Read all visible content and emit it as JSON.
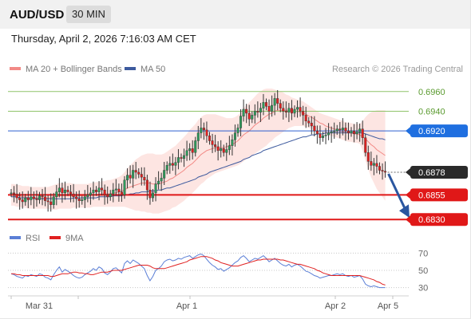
{
  "header": {
    "symbol": "AUD/USD",
    "timeframe": "30 MIN"
  },
  "datetime": "Thursday, April 2, 2026 7:16:03 AM CET",
  "legend": {
    "bollinger": "MA 20 + Bollinger Bands",
    "ma50": "MA 50"
  },
  "credit": "Research © 2026 Trading Central",
  "rsi_legend": {
    "rsi": "RSI",
    "ma": "9MA"
  },
  "colors": {
    "up": "#2e9a5b",
    "down": "#e02020",
    "ma20": "#f28a86",
    "band": "#fde2df",
    "ma50": "#3d5a9e",
    "green_level": "#8fc46a",
    "resistance_line": "#2d5fcf",
    "support_line": "#e01818",
    "arrow": "#2a56a0",
    "rsi_line": "#5b7fd6",
    "rsi_ma": "#e02020"
  },
  "chart_data": [
    {
      "type": "candlestick",
      "title": "AUD/USD",
      "ylim": [
        0.6818,
        0.6972
      ],
      "x_ticks": [
        "Mar 31",
        "Apr 1",
        "Apr 2",
        "Apr 5"
      ],
      "levels": [
        {
          "value": 0.696,
          "label": "0.6960",
          "kind": "green"
        },
        {
          "value": 0.694,
          "label": "0.6940",
          "kind": "green"
        },
        {
          "value": 0.692,
          "label": "0.6920",
          "kind": "resistance"
        },
        {
          "value": 0.6878,
          "label": "0.6878",
          "kind": "last"
        },
        {
          "value": 0.6855,
          "label": "0.6855",
          "kind": "support"
        },
        {
          "value": 0.683,
          "label": "0.6830",
          "kind": "support"
        }
      ],
      "last_price": 0.6878,
      "forecast": {
        "from": 0.6878,
        "to": 0.683,
        "direction": "down"
      },
      "close": [
        0.6857,
        0.6856,
        0.6852,
        0.685,
        0.6848,
        0.6852,
        0.685,
        0.6853,
        0.6851,
        0.685,
        0.6854,
        0.6853,
        0.6849,
        0.6848,
        0.6845,
        0.6853,
        0.6858,
        0.6862,
        0.6857,
        0.686,
        0.6858,
        0.6856,
        0.6853,
        0.6851,
        0.6849,
        0.685,
        0.6853,
        0.6855,
        0.6857,
        0.686,
        0.6858,
        0.6862,
        0.686,
        0.6855,
        0.6853,
        0.6856,
        0.686,
        0.6861,
        0.6858,
        0.6855,
        0.687,
        0.6875,
        0.6872,
        0.688,
        0.6878,
        0.6876,
        0.6873,
        0.687,
        0.686,
        0.6852,
        0.6857,
        0.6866,
        0.6869,
        0.6872,
        0.688,
        0.6885,
        0.6887,
        0.6885,
        0.6888,
        0.6893,
        0.6892,
        0.6895,
        0.69,
        0.6902,
        0.6898,
        0.691,
        0.6918,
        0.6923,
        0.6921,
        0.6915,
        0.691,
        0.6906,
        0.6904,
        0.69,
        0.6902,
        0.6898,
        0.6901,
        0.6905,
        0.6911,
        0.6918,
        0.6923,
        0.6935,
        0.6942,
        0.6938,
        0.6932,
        0.6936,
        0.694,
        0.6939,
        0.6943,
        0.6949,
        0.6945,
        0.694,
        0.6946,
        0.6953,
        0.6948,
        0.6943,
        0.694,
        0.6939,
        0.6943,
        0.6938,
        0.6942,
        0.6944,
        0.694,
        0.6936,
        0.693,
        0.6928,
        0.6925,
        0.692,
        0.6917,
        0.6913,
        0.6915,
        0.6916,
        0.6918,
        0.6919,
        0.692,
        0.6922,
        0.6921,
        0.6923,
        0.692,
        0.6918,
        0.692,
        0.6917,
        0.6919,
        0.6922,
        0.6913,
        0.6898,
        0.6889,
        0.6885,
        0.6887,
        0.6884,
        0.688,
        0.6879,
        0.6878
      ],
      "band_upper": [
        0.6866,
        0.6866,
        0.6865,
        0.6865,
        0.6864,
        0.6864,
        0.6864,
        0.6863,
        0.6863,
        0.6863,
        0.6863,
        0.6863,
        0.6863,
        0.6863,
        0.6864,
        0.6865,
        0.6866,
        0.6867,
        0.6867,
        0.6867,
        0.6867,
        0.6867,
        0.6866,
        0.6866,
        0.6866,
        0.6866,
        0.6866,
        0.6866,
        0.6867,
        0.6867,
        0.6868,
        0.6868,
        0.6869,
        0.6869,
        0.687,
        0.687,
        0.6871,
        0.6872,
        0.6873,
        0.6875,
        0.6878,
        0.6882,
        0.6885,
        0.6888,
        0.6891,
        0.6893,
        0.6895,
        0.6896,
        0.6897,
        0.6897,
        0.6897,
        0.6896,
        0.6896,
        0.6896,
        0.6897,
        0.6899,
        0.6901,
        0.6903,
        0.6905,
        0.6908,
        0.6911,
        0.6914,
        0.6917,
        0.6921,
        0.6924,
        0.6927,
        0.6931,
        0.6934,
        0.6936,
        0.6937,
        0.6937,
        0.6937,
        0.6937,
        0.6936,
        0.6935,
        0.6934,
        0.6933,
        0.6933,
        0.6933,
        0.6934,
        0.6936,
        0.6939,
        0.6943,
        0.6946,
        0.6949,
        0.6952,
        0.6955,
        0.6958,
        0.696,
        0.6962,
        0.6963,
        0.6963,
        0.6963,
        0.6962,
        0.6961,
        0.696,
        0.6959,
        0.6957,
        0.6956,
        0.6954,
        0.6953,
        0.6952,
        0.6951,
        0.695,
        0.6948,
        0.6946,
        0.6944,
        0.6942,
        0.694,
        0.6938,
        0.6937,
        0.6936,
        0.6935,
        0.6934,
        0.6933,
        0.6932,
        0.6931,
        0.693,
        0.6929,
        0.6928,
        0.6928,
        0.6927,
        0.6927,
        0.6927,
        0.693,
        0.6934,
        0.6937,
        0.6939,
        0.694,
        0.6941,
        0.6941,
        0.6941,
        0.6941
      ],
      "ma20": [
        0.6855,
        0.6855,
        0.6854,
        0.6854,
        0.6853,
        0.6853,
        0.6852,
        0.6852,
        0.6852,
        0.6852,
        0.6852,
        0.6852,
        0.6852,
        0.6852,
        0.6852,
        0.6853,
        0.6853,
        0.6854,
        0.6854,
        0.6854,
        0.6854,
        0.6854,
        0.6854,
        0.6854,
        0.6854,
        0.6854,
        0.6854,
        0.6854,
        0.6855,
        0.6855,
        0.6855,
        0.6856,
        0.6856,
        0.6856,
        0.6856,
        0.6856,
        0.6857,
        0.6857,
        0.6858,
        0.6859,
        0.686,
        0.6862,
        0.6863,
        0.6864,
        0.6865,
        0.6866,
        0.6867,
        0.6867,
        0.6867,
        0.6867,
        0.6866,
        0.6866,
        0.6866,
        0.6867,
        0.6868,
        0.6869,
        0.6871,
        0.6872,
        0.6874,
        0.6876,
        0.6878,
        0.688,
        0.6883,
        0.6885,
        0.6887,
        0.689,
        0.6893,
        0.6896,
        0.6898,
        0.69,
        0.6901,
        0.6902,
        0.6903,
        0.6903,
        0.6903,
        0.6903,
        0.6904,
        0.6905,
        0.6906,
        0.6908,
        0.691,
        0.6913,
        0.6916,
        0.6918,
        0.692,
        0.6923,
        0.6926,
        0.6928,
        0.693,
        0.6933,
        0.6935,
        0.6937,
        0.6938,
        0.694,
        0.6941,
        0.6941,
        0.6941,
        0.6941,
        0.6941,
        0.6941,
        0.694,
        0.694,
        0.6939,
        0.6938,
        0.6937,
        0.6935,
        0.6934,
        0.6932,
        0.693,
        0.6928,
        0.6927,
        0.6925,
        0.6924,
        0.6923,
        0.6922,
        0.6921,
        0.692,
        0.6919,
        0.6919,
        0.6918,
        0.6918,
        0.6917,
        0.6917,
        0.6916,
        0.6914,
        0.6912,
        0.6909,
        0.6906,
        0.6904,
        0.6901,
        0.6899,
        0.6897,
        0.6895
      ],
      "band_lower": [
        0.6844,
        0.6844,
        0.6843,
        0.6843,
        0.6842,
        0.6842,
        0.6841,
        0.6841,
        0.6841,
        0.6841,
        0.6841,
        0.6841,
        0.6841,
        0.6841,
        0.684,
        0.684,
        0.684,
        0.6841,
        0.6841,
        0.6841,
        0.6841,
        0.6841,
        0.6842,
        0.6842,
        0.6842,
        0.6842,
        0.6842,
        0.6842,
        0.6842,
        0.6843,
        0.6843,
        0.6843,
        0.6843,
        0.6843,
        0.6843,
        0.6843,
        0.6843,
        0.6843,
        0.6843,
        0.6843,
        0.6843,
        0.6842,
        0.6841,
        0.684,
        0.6839,
        0.6839,
        0.6838,
        0.6838,
        0.6837,
        0.6837,
        0.6836,
        0.6836,
        0.6836,
        0.6837,
        0.6838,
        0.6839,
        0.684,
        0.6842,
        0.6843,
        0.6845,
        0.6847,
        0.6849,
        0.6852,
        0.6854,
        0.6857,
        0.686,
        0.6863,
        0.6866,
        0.6868,
        0.6871,
        0.6873,
        0.6875,
        0.6877,
        0.6878,
        0.6879,
        0.688,
        0.6881,
        0.6882,
        0.6883,
        0.6884,
        0.6885,
        0.6887,
        0.6889,
        0.6891,
        0.6893,
        0.6895,
        0.6897,
        0.6899,
        0.6901,
        0.6903,
        0.6905,
        0.6908,
        0.691,
        0.6913,
        0.6915,
        0.6917,
        0.6919,
        0.6921,
        0.6923,
        0.6924,
        0.6925,
        0.6925,
        0.6925,
        0.6925,
        0.6924,
        0.6923,
        0.6922,
        0.6921,
        0.692,
        0.6919,
        0.6918,
        0.6917,
        0.6916,
        0.6915,
        0.6914,
        0.6913,
        0.6912,
        0.6911,
        0.691,
        0.6909,
        0.6909,
        0.6908,
        0.6908,
        0.6907,
        0.69,
        0.689,
        0.6881,
        0.6873,
        0.6867,
        0.6861,
        0.6857,
        0.6853,
        0.6849
      ],
      "ma50": [
        0.6853,
        0.6853,
        0.6853,
        0.6852,
        0.6852,
        0.6852,
        0.6852,
        0.6852,
        0.6852,
        0.6851,
        0.6851,
        0.6851,
        0.6851,
        0.6851,
        0.6851,
        0.6851,
        0.6851,
        0.6851,
        0.6851,
        0.6851,
        0.6851,
        0.6851,
        0.6852,
        0.6852,
        0.6852,
        0.6852,
        0.6852,
        0.6852,
        0.6852,
        0.6852,
        0.6852,
        0.6853,
        0.6853,
        0.6853,
        0.6853,
        0.6853,
        0.6854,
        0.6854,
        0.6854,
        0.6854,
        0.6855,
        0.6855,
        0.6856,
        0.6856,
        0.6857,
        0.6857,
        0.6858,
        0.6858,
        0.6858,
        0.6859,
        0.6859,
        0.6859,
        0.686,
        0.686,
        0.6861,
        0.6862,
        0.6862,
        0.6863,
        0.6864,
        0.6865,
        0.6866,
        0.6867,
        0.6868,
        0.6869,
        0.687,
        0.6871,
        0.6873,
        0.6874,
        0.6875,
        0.6876,
        0.6878,
        0.6879,
        0.688,
        0.6881,
        0.6882,
        0.6883,
        0.6884,
        0.6885,
        0.6886,
        0.6887,
        0.6888,
        0.6889,
        0.6891,
        0.6892,
        0.6893,
        0.6895,
        0.6896,
        0.6897,
        0.6898,
        0.69,
        0.6901,
        0.6902,
        0.6903,
        0.6904,
        0.6905,
        0.6906,
        0.6907,
        0.6908,
        0.6909,
        0.691,
        0.6911,
        0.6912,
        0.6913,
        0.6914,
        0.6914,
        0.6915,
        0.6916,
        0.6916,
        0.6917,
        0.6917,
        0.6917,
        0.6918,
        0.6918,
        0.6918,
        0.6918,
        0.6918,
        0.6918,
        0.6918,
        0.6918,
        0.6918,
        0.6918,
        0.6918,
        0.6918,
        0.6918,
        0.6918,
        0.6917,
        0.6916,
        0.6915,
        0.6914,
        0.6913,
        0.6912,
        0.6912,
        0.6911
      ]
    },
    {
      "type": "line",
      "title": "RSI",
      "ylim": [
        25,
        75
      ],
      "y_ticks": [
        70,
        50,
        30
      ],
      "series": [
        {
          "name": "RSI",
          "values": [
            46,
            45,
            43,
            42,
            41,
            44,
            43,
            45,
            44,
            43,
            46,
            45,
            42,
            41,
            39,
            45,
            50,
            54,
            48,
            51,
            49,
            47,
            44,
            42,
            41,
            42,
            45,
            47,
            49,
            52,
            50,
            54,
            52,
            47,
            45,
            48,
            52,
            53,
            50,
            47,
            58,
            61,
            58,
            62,
            60,
            58,
            55,
            52,
            44,
            38,
            43,
            50,
            52,
            55,
            60,
            62,
            63,
            61,
            62,
            64,
            63,
            65,
            66,
            67,
            64,
            66,
            68,
            69,
            67,
            63,
            59,
            56,
            54,
            51,
            52,
            49,
            51,
            53,
            56,
            59,
            61,
            65,
            67,
            64,
            60,
            62,
            64,
            63,
            65,
            67,
            64,
            60,
            62,
            64,
            61,
            58,
            56,
            55,
            57,
            54,
            56,
            57,
            55,
            52,
            49,
            48,
            46,
            44,
            43,
            41,
            42,
            43,
            44,
            44,
            45,
            46,
            45,
            46,
            44,
            43,
            44,
            42,
            43,
            44,
            40,
            34,
            32,
            31,
            32,
            31,
            30,
            30,
            30
          ]
        },
        {
          "name": "9MA",
          "values": [
            46,
            46,
            45,
            45,
            44,
            44,
            44,
            44,
            44,
            44,
            44,
            44,
            44,
            44,
            43,
            43,
            44,
            45,
            46,
            46,
            46,
            47,
            48,
            48,
            47,
            47,
            46,
            46,
            45,
            45,
            46,
            47,
            48,
            48,
            48,
            49,
            50,
            50,
            50,
            50,
            51,
            52,
            53,
            54,
            55,
            56,
            56,
            56,
            56,
            55,
            53,
            52,
            52,
            52,
            52,
            53,
            54,
            55,
            56,
            57,
            58,
            59,
            60,
            62,
            63,
            64,
            65,
            66,
            66,
            66,
            65,
            64,
            62,
            61,
            59,
            58,
            57,
            56,
            55,
            55,
            55,
            56,
            57,
            58,
            59,
            60,
            61,
            62,
            62,
            63,
            63,
            63,
            63,
            63,
            63,
            62,
            62,
            61,
            60,
            59,
            58,
            57,
            57,
            56,
            55,
            54,
            53,
            52,
            50,
            49,
            47,
            46,
            45,
            44,
            44,
            44,
            44,
            44,
            44,
            44,
            44,
            44,
            44,
            44,
            43,
            42,
            41,
            40,
            39,
            37,
            36,
            34,
            33
          ]
        }
      ]
    }
  ]
}
